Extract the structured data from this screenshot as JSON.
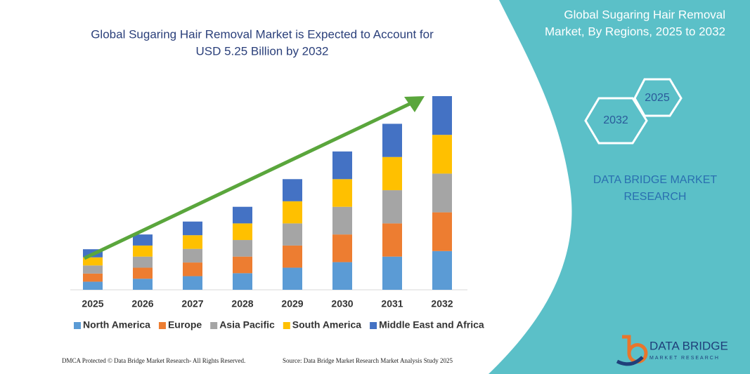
{
  "chart_data": {
    "type": "bar",
    "stacked": true,
    "title": [
      "Global Sugaring Hair Removal Market is Expected to Account for",
      "USD  5.25 Billion by 2032"
    ],
    "categories": [
      "2025",
      "2026",
      "2027",
      "2028",
      "2029",
      "2030",
      "2031",
      "2032"
    ],
    "series": [
      {
        "name": "North America",
        "color": "#5b9bd5",
        "values": [
          0.22,
          0.3,
          0.37,
          0.45,
          0.6,
          0.75,
          0.9,
          1.05
        ]
      },
      {
        "name": "Europe",
        "color": "#ed7d31",
        "values": [
          0.22,
          0.3,
          0.37,
          0.45,
          0.6,
          0.75,
          0.9,
          1.05
        ]
      },
      {
        "name": "Asia Pacific",
        "color": "#a5a5a5",
        "values": [
          0.22,
          0.3,
          0.37,
          0.45,
          0.6,
          0.75,
          0.9,
          1.05
        ]
      },
      {
        "name": "South America",
        "color": "#ffc000",
        "values": [
          0.22,
          0.3,
          0.37,
          0.45,
          0.6,
          0.75,
          0.9,
          1.05
        ]
      },
      {
        "name": "Middle East and Africa",
        "color": "#4472c4",
        "values": [
          0.22,
          0.3,
          0.37,
          0.45,
          0.6,
          0.75,
          0.9,
          1.05
        ]
      }
    ]
  },
  "panel": {
    "title": [
      "Global Sugaring Hair Removal",
      "Market, By Regions, 2025 to 2032"
    ],
    "hex_labels": [
      "2025",
      "2032"
    ],
    "brand": [
      "DATA BRIDGE MARKET",
      "RESEARCH"
    ]
  },
  "logo": {
    "name": "DATA BRIDGE",
    "tagline": "MARKET RESEARCH"
  },
  "footer": {
    "left": "DMCA Protected © Data Bridge Market Research- All Rights Reserved.",
    "right": "Source: Data Bridge Market Research Market Analysis Study 2025"
  }
}
